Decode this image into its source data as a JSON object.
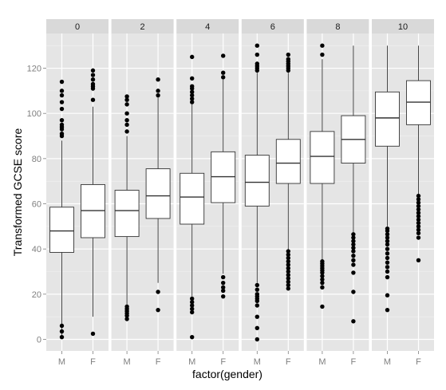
{
  "chart_data": {
    "type": "boxplot",
    "title": "",
    "xlabel": "factor(gender)",
    "ylabel": "Transformed GCSE score",
    "ylim": [
      -5,
      133
    ],
    "yticks": [
      0,
      20,
      40,
      60,
      80,
      100,
      120
    ],
    "grid": true,
    "facet_label_values": [
      "0",
      "2",
      "4",
      "6",
      "8",
      "10"
    ],
    "categories": [
      "M",
      "F"
    ],
    "panels": [
      {
        "facet": "0",
        "boxes": [
          {
            "group": "M",
            "whisker_low": 1,
            "q1": 38.5,
            "median": 48,
            "q3": 58.5,
            "whisker_high": 88,
            "outliers": [
              1,
              3.5,
              6,
              90,
              91,
              93,
              94,
              95,
              97,
              102,
              105,
              108,
              110,
              114
            ]
          },
          {
            "group": "F",
            "whisker_low": 10,
            "q1": 45,
            "median": 57,
            "q3": 68.5,
            "whisker_high": 103,
            "outliers": [
              2.5,
              106,
              111,
              112,
              113,
              115,
              117,
              119
            ]
          }
        ]
      },
      {
        "facet": "2",
        "boxes": [
          {
            "group": "M",
            "whisker_low": 15,
            "q1": 45.5,
            "median": 57,
            "q3": 66,
            "whisker_high": 90,
            "outliers": [
              9,
              10.5,
              11.5,
              12.5,
              13.5,
              14.5,
              92,
              95,
              97,
              100,
              104,
              106,
              107.5
            ]
          },
          {
            "group": "F",
            "whisker_low": 25,
            "q1": 53.5,
            "median": 63.5,
            "q3": 75.5,
            "whisker_high": 107,
            "outliers": [
              13,
              21,
              108,
              110,
              115
            ]
          }
        ]
      },
      {
        "facet": "4",
        "boxes": [
          {
            "group": "M",
            "whisker_low": 19,
            "q1": 51,
            "median": 63,
            "q3": 73.5,
            "whisker_high": 104,
            "outliers": [
              1,
              12,
              13.5,
              15,
              16.5,
              18,
              105,
              106.5,
              108,
              109.5,
              111,
              112,
              115.5,
              125
            ]
          },
          {
            "group": "F",
            "whisker_low": 29,
            "q1": 60.5,
            "median": 72,
            "q3": 83,
            "whisker_high": 115,
            "outliers": [
              19,
              21.5,
              23,
              25,
              27.5,
              116,
              118,
              125.5
            ]
          }
        ]
      },
      {
        "facet": "6",
        "boxes": [
          {
            "group": "M",
            "whisker_low": 25,
            "q1": 59,
            "median": 69.5,
            "q3": 81.5,
            "whisker_high": 118,
            "outliers": [
              0,
              5,
              10,
              15,
              17,
              18,
              19,
              20,
              22,
              24,
              119,
              120,
              121,
              122,
              126,
              130
            ]
          },
          {
            "group": "F",
            "whisker_low": 39,
            "q1": 69,
            "median": 78,
            "q3": 88.5,
            "whisker_high": 118,
            "outliers": [
              22.5,
              24,
              25.5,
              27,
              28.5,
              30,
              31.5,
              33,
              34.5,
              36,
              37.5,
              39,
              119,
              120,
              121,
              122,
              123,
              124,
              126
            ]
          }
        ]
      },
      {
        "facet": "8",
        "boxes": [
          {
            "group": "M",
            "whisker_low": 35,
            "q1": 69,
            "median": 81,
            "q3": 92,
            "whisker_high": 124,
            "outliers": [
              14.5,
              23,
              25,
              26.5,
              28,
              29.5,
              30.5,
              31.5,
              32.5,
              33.5,
              34.5,
              126,
              130
            ]
          },
          {
            "group": "F",
            "whisker_low": 47,
            "q1": 78,
            "median": 88.5,
            "q3": 99,
            "whisker_high": 130,
            "outliers": [
              8,
              21,
              29.5,
              33,
              35,
              37,
              39,
              40.5,
              42,
              43.5,
              45,
              46.5
            ]
          }
        ]
      },
      {
        "facet": "10",
        "boxes": [
          {
            "group": "M",
            "whisker_low": 50,
            "q1": 85.5,
            "median": 98,
            "q3": 109.5,
            "whisker_high": 130,
            "outliers": [
              13,
              19.5,
              27.5,
              30,
              32,
              34,
              36,
              38,
              40,
              42,
              43.5,
              45,
              46.5,
              48,
              49
            ]
          },
          {
            "group": "F",
            "whisker_low": 64,
            "q1": 95,
            "median": 105,
            "q3": 114.5,
            "whisker_high": 130,
            "outliers": [
              35,
              45,
              47,
              48.5,
              50,
              51.5,
              53,
              54.5,
              56,
              57.5,
              59,
              60.5,
              62,
              63.5
            ]
          }
        ]
      }
    ]
  }
}
